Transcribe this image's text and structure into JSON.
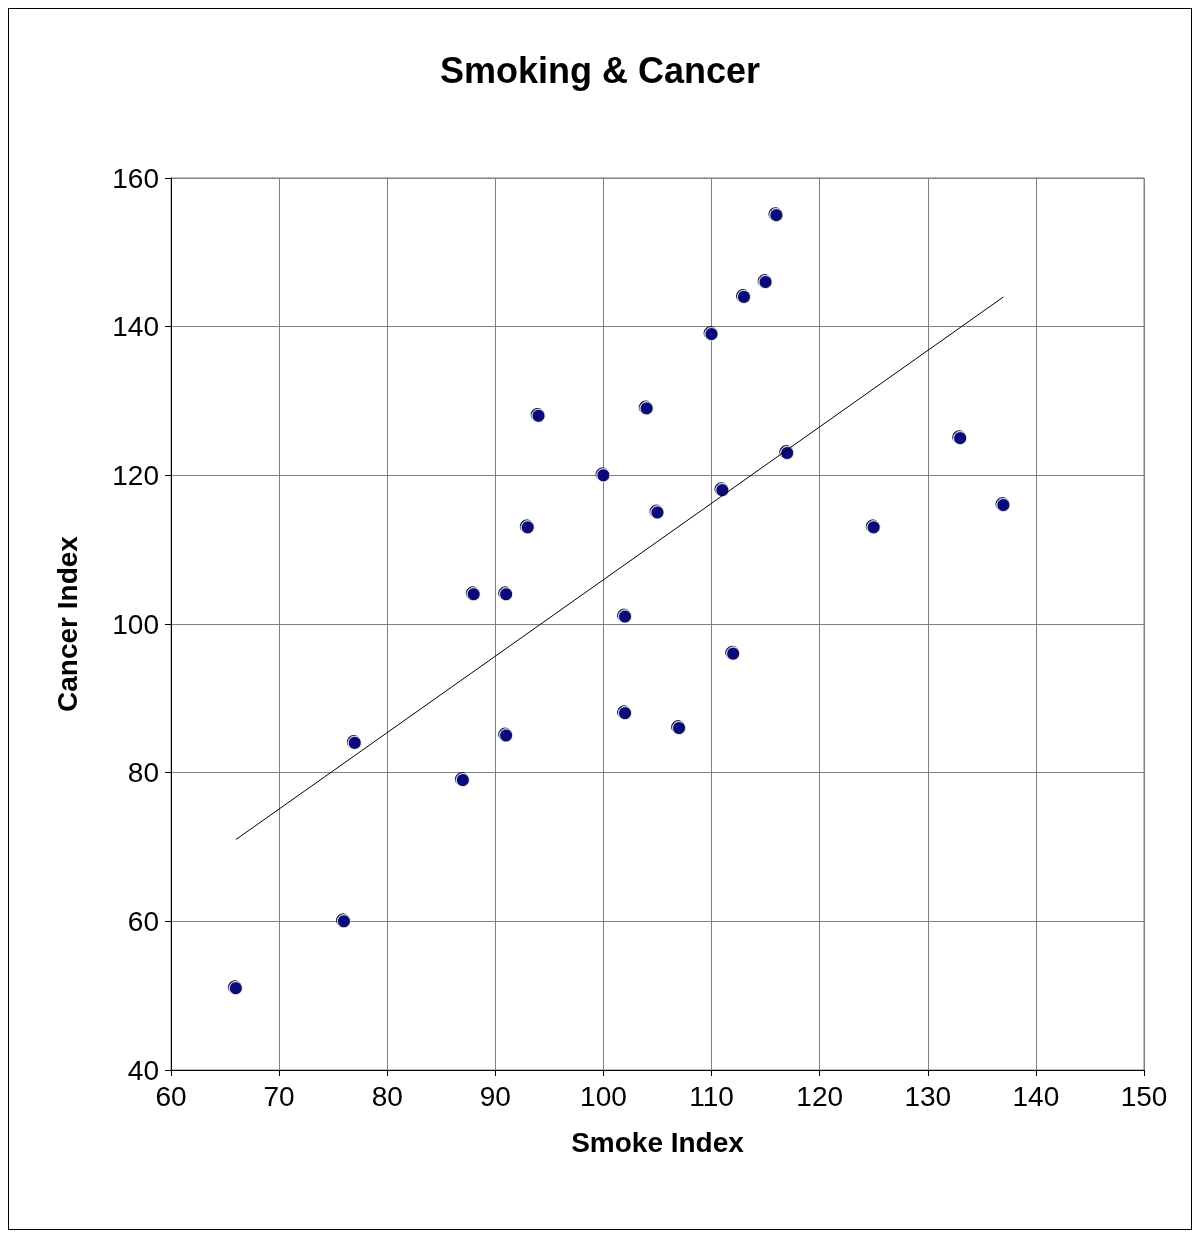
{
  "chart_data": {
    "type": "scatter",
    "title": "Smoking & Cancer",
    "xlabel": "Smoke Index",
    "ylabel": "Cancer Index",
    "xlim": [
      60,
      150
    ],
    "xticks": [
      60,
      70,
      80,
      90,
      100,
      110,
      120,
      130,
      140,
      150
    ],
    "ylim": [
      40,
      160
    ],
    "yticks": [
      40,
      60,
      80,
      100,
      120,
      140,
      160
    ],
    "grid": true,
    "series": [
      {
        "marker": "circle",
        "color": "#000080",
        "x": [
          66,
          76,
          77,
          87,
          88,
          91,
          91,
          93,
          94,
          100,
          102,
          102,
          104,
          105,
          107,
          110,
          111,
          112,
          113,
          115,
          116,
          117,
          125,
          133,
          137
        ],
        "values": [
          51,
          60,
          84,
          79,
          104,
          104,
          85,
          113,
          128,
          120,
          101,
          88,
          129,
          115,
          86,
          139,
          118,
          96,
          144,
          146,
          155,
          123,
          113,
          125,
          116
        ]
      },
      {
        "type": "line",
        "marker": "none",
        "color": "#000000",
        "x": [
          66,
          137
        ],
        "values": [
          71,
          144
        ]
      }
    ]
  }
}
